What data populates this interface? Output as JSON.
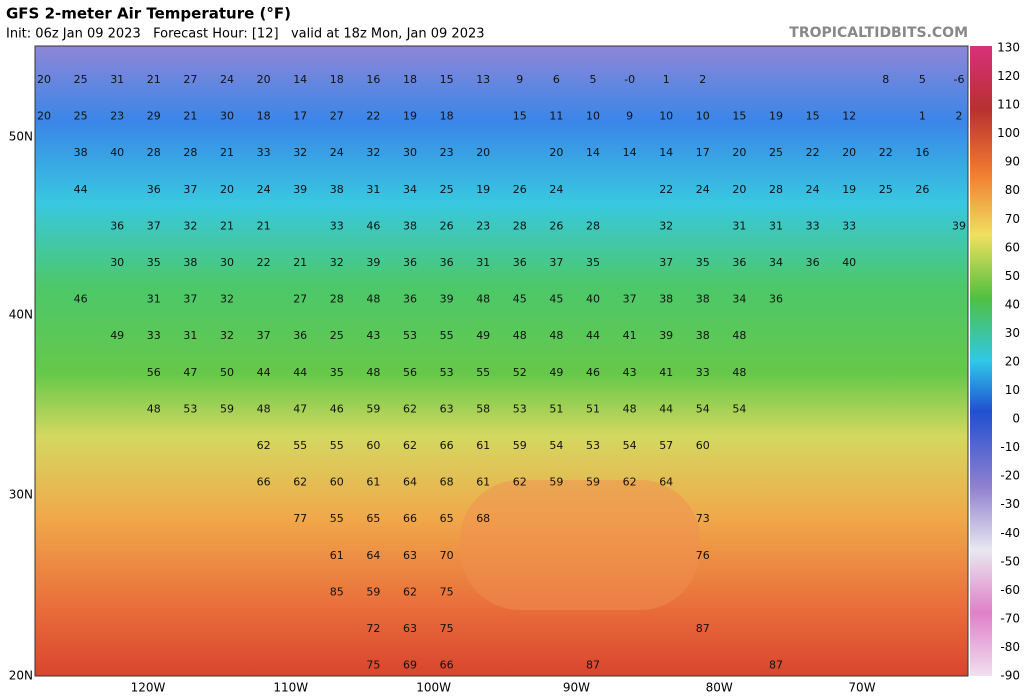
{
  "header": {
    "title": "GFS 2-meter Air Temperature (°F)",
    "subtitle": "Init: 06z Jan 09 2023   Forecast Hour: [12]   valid at 18z Mon, Jan 09 2023",
    "credit": "TROPICALTIDBITS.COM"
  },
  "map": {
    "latitudes": [
      "50N",
      "40N",
      "30N",
      "20N"
    ],
    "longitudes": [
      "120W",
      "110W",
      "100W",
      "90W",
      "80W",
      "70W"
    ],
    "grid_values": [
      [
        20,
        25,
        31,
        21,
        27,
        24,
        20,
        14,
        18,
        16,
        18,
        15,
        13,
        9,
        6,
        5,
        {
          "value": 0,
          "label": "-0"
        },
        1,
        2,
        null,
        null,
        null,
        null,
        8,
        5,
        -6
      ],
      [
        20,
        25,
        23,
        29,
        21,
        30,
        18,
        17,
        27,
        22,
        19,
        18,
        null,
        15,
        11,
        10,
        9,
        10,
        10,
        15,
        19,
        15,
        12,
        null,
        1,
        2
      ],
      [
        null,
        38,
        40,
        28,
        28,
        21,
        33,
        32,
        24,
        32,
        30,
        23,
        20,
        null,
        20,
        14,
        14,
        14,
        17,
        20,
        25,
        22,
        20,
        22,
        16,
        null
      ],
      [
        null,
        44,
        null,
        36,
        37,
        20,
        24,
        39,
        38,
        31,
        34,
        25,
        19,
        26,
        24,
        null,
        null,
        22,
        24,
        20,
        28,
        24,
        19,
        25,
        26,
        null
      ],
      [
        null,
        null,
        36,
        37,
        32,
        21,
        21,
        null,
        33,
        46,
        38,
        26,
        23,
        28,
        26,
        28,
        null,
        32,
        null,
        31,
        31,
        33,
        33,
        null,
        null,
        39
      ],
      [
        null,
        null,
        30,
        35,
        38,
        30,
        22,
        21,
        32,
        39,
        36,
        36,
        31,
        36,
        37,
        35,
        null,
        37,
        35,
        36,
        34,
        36,
        40,
        null,
        null,
        null
      ],
      [
        null,
        46,
        null,
        31,
        37,
        32,
        null,
        27,
        28,
        48,
        36,
        39,
        48,
        45,
        45,
        40,
        37,
        38,
        38,
        34,
        36,
        null,
        null,
        null,
        null,
        null
      ],
      [
        null,
        null,
        49,
        33,
        31,
        32,
        37,
        36,
        25,
        43,
        53,
        55,
        49,
        48,
        48,
        44,
        41,
        39,
        38,
        48,
        null,
        null,
        null,
        null,
        null,
        null
      ],
      [
        null,
        null,
        null,
        56,
        47,
        50,
        44,
        44,
        35,
        48,
        56,
        53,
        55,
        52,
        49,
        46,
        43,
        41,
        33,
        48,
        null,
        null,
        null,
        null,
        null,
        null
      ],
      [
        null,
        null,
        null,
        48,
        53,
        59,
        48,
        47,
        46,
        59,
        62,
        63,
        58,
        53,
        51,
        51,
        48,
        44,
        54,
        54,
        null,
        null,
        null,
        null,
        null,
        null
      ],
      [
        null,
        null,
        null,
        null,
        null,
        null,
        62,
        55,
        55,
        60,
        62,
        66,
        61,
        59,
        54,
        53,
        54,
        57,
        60,
        null,
        null,
        null,
        null,
        null,
        null,
        null
      ],
      [
        null,
        null,
        null,
        null,
        null,
        null,
        66,
        62,
        60,
        61,
        64,
        68,
        61,
        62,
        59,
        59,
        62,
        64,
        null,
        null,
        null,
        null,
        null,
        null,
        null,
        null
      ],
      [
        null,
        null,
        null,
        null,
        null,
        null,
        null,
        77,
        55,
        65,
        66,
        65,
        68,
        null,
        null,
        null,
        null,
        null,
        73,
        null,
        null,
        null,
        null,
        null,
        null,
        null
      ],
      [
        null,
        null,
        null,
        null,
        null,
        null,
        null,
        null,
        61,
        64,
        63,
        70,
        null,
        null,
        null,
        null,
        null,
        null,
        76,
        null,
        null,
        null,
        null,
        null,
        null,
        null
      ],
      [
        null,
        null,
        null,
        null,
        null,
        null,
        null,
        null,
        85,
        59,
        62,
        75,
        null,
        null,
        null,
        null,
        null,
        null,
        null,
        null,
        null,
        null,
        null,
        null,
        null,
        null
      ],
      [
        null,
        null,
        null,
        null,
        null,
        null,
        null,
        null,
        null,
        72,
        63,
        75,
        null,
        null,
        null,
        null,
        null,
        null,
        87,
        null,
        null,
        null,
        null,
        null,
        null,
        null
      ],
      [
        null,
        null,
        null,
        null,
        null,
        null,
        null,
        null,
        null,
        75,
        69,
        66,
        null,
        null,
        null,
        87,
        null,
        null,
        null,
        null,
        87,
        null,
        null,
        null,
        null,
        null
      ]
    ]
  },
  "colorbar": {
    "labels": [
      130,
      120,
      110,
      100,
      90,
      80,
      70,
      60,
      50,
      40,
      30,
      20,
      10,
      0,
      -10,
      -20,
      -30,
      -40,
      -50,
      -60,
      -70,
      -80,
      -90
    ]
  }
}
